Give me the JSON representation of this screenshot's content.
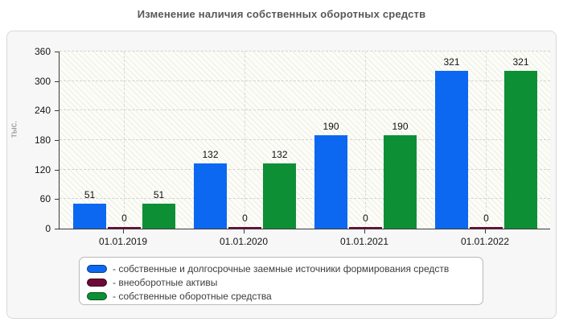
{
  "title": "Изменение наличия собственных оборотных средств",
  "chart_data": {
    "type": "bar",
    "title": "Изменение наличия собственных оборотных средств",
    "xlabel": "",
    "ylabel": "тыс.",
    "ylim": [
      0,
      360
    ],
    "yticks": [
      0,
      60,
      120,
      180,
      240,
      300,
      360
    ],
    "grid": true,
    "legend_position": "bottom",
    "categories": [
      "01.01.2019",
      "01.01.2020",
      "01.01.2021",
      "01.01.2022"
    ],
    "series": [
      {
        "name": "собственные и долгосрочные заемные источники формирования средств",
        "legend_label": "- собственные и долгосрочные заемные источники формирования средств",
        "color": "#0d68f1",
        "values": [
          51,
          132,
          190,
          321
        ]
      },
      {
        "name": "внеоборотные активы",
        "legend_label": "- внеоборотные активы",
        "color": "#6e0838",
        "values": [
          0,
          0,
          0,
          0
        ]
      },
      {
        "name": "собственные оборотные средства",
        "legend_label": "- собственные оборотные средства",
        "color": "#0d8f35",
        "values": [
          51,
          132,
          190,
          321
        ]
      }
    ]
  }
}
